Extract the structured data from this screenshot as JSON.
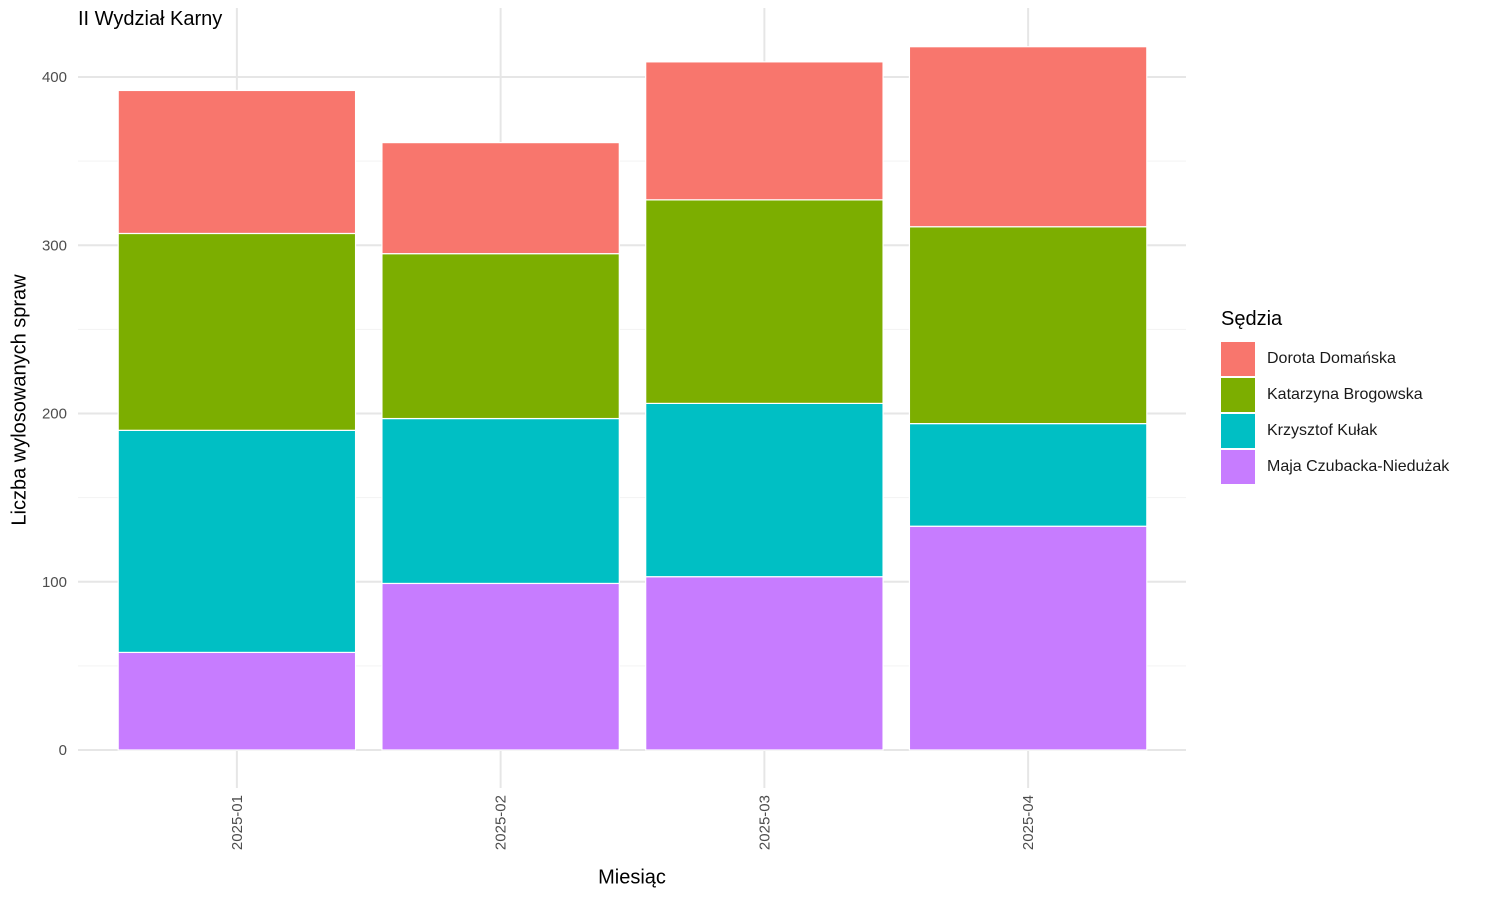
{
  "chart_data": {
    "type": "bar",
    "stacked": true,
    "title": "II Wydział Karny",
    "xlabel": "Miesiąc",
    "ylabel": "Liczba wylosowanych spraw",
    "categories": [
      "2025-01",
      "2025-02",
      "2025-03",
      "2025-04"
    ],
    "ylim": [
      0,
      430
    ],
    "yticks": [
      0,
      100,
      200,
      300,
      400
    ],
    "grid": true,
    "legend": {
      "title": "Sędzia",
      "position": "right"
    },
    "series": [
      {
        "name": "Maja Czubacka-Niedużak",
        "color": "#C77CFF",
        "values": [
          58,
          99,
          103,
          133
        ]
      },
      {
        "name": "Krzysztof Kułak",
        "color": "#00BFC4",
        "values": [
          132,
          98,
          103,
          61
        ]
      },
      {
        "name": "Katarzyna Brogowska",
        "color": "#7CAE00",
        "values": [
          117,
          98,
          121,
          117
        ]
      },
      {
        "name": "Dorota Domańska",
        "color": "#F8766D",
        "values": [
          85,
          66,
          82,
          107
        ]
      }
    ],
    "legend_order": [
      3,
      2,
      1,
      0
    ]
  }
}
